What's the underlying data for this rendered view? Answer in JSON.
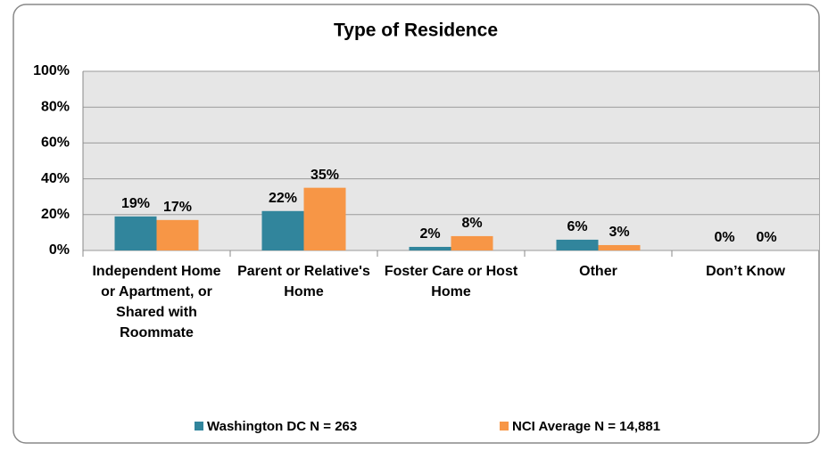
{
  "chart_data": {
    "type": "bar",
    "title": "Type of Residence",
    "categories": [
      "Independent Home or Apartment, or Shared with Roommate",
      "Parent or Relative's Home",
      "Foster Care or Host Home",
      "Other",
      "Don’t Know"
    ],
    "series": [
      {
        "name": "Washington DC N = 263",
        "color": "#31859c",
        "values": [
          19,
          22,
          2,
          6,
          0
        ],
        "value_labels": [
          "19%",
          "22%",
          "2%",
          "6%",
          "0%"
        ]
      },
      {
        "name": "NCI Average N = 14,881",
        "color": "#f79646",
        "values": [
          17,
          35,
          8,
          3,
          0
        ],
        "value_labels": [
          "17%",
          "35%",
          "8%",
          "3%",
          "0%"
        ]
      }
    ],
    "ylim": [
      0,
      100
    ],
    "yticks": [
      {
        "value": 0,
        "label": "0%"
      },
      {
        "value": 20,
        "label": "20%"
      },
      {
        "value": 40,
        "label": "40%"
      },
      {
        "value": 60,
        "label": "60%"
      },
      {
        "value": 80,
        "label": "80%"
      },
      {
        "value": 100,
        "label": "100%"
      }
    ],
    "grid": true,
    "legend": "bottom"
  }
}
